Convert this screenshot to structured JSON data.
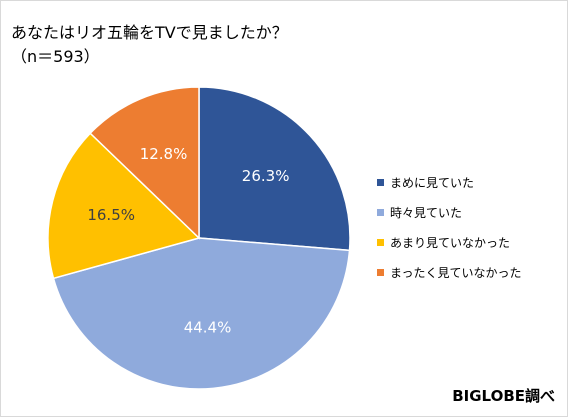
{
  "chart_data": {
    "type": "pie",
    "title": "あなたはリオ五輪をTVで見ましたか？",
    "subtitle": "（n＝593）",
    "start_angle_deg": 0,
    "direction": "clockwise",
    "legend_position": "right",
    "slices": [
      {
        "label": "まめに見ていた",
        "value": 26.3,
        "value_label": "26.3%",
        "color": "#2F5597"
      },
      {
        "label": "時々見ていた",
        "value": 44.4,
        "value_label": "44.4%",
        "color": "#8FAADC"
      },
      {
        "label": "あまり見ていなかった",
        "value": 16.5,
        "value_label": "16.5%",
        "color": "#FFC000"
      },
      {
        "label": "まったく見ていなかった",
        "value": 12.8,
        "value_label": "12.8%",
        "color": "#ED7D31"
      }
    ]
  },
  "source": "BIGLOBE調べ"
}
